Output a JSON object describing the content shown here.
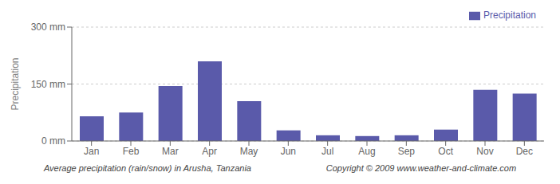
{
  "chart_data": {
    "type": "bar",
    "title": "Average precipitation (rain/snow) in Arusha, Tanzania",
    "annotations": [
      "Copyright © 2009 www.weather-and-climate.com"
    ],
    "categories": [
      "Jan",
      "Feb",
      "Mar",
      "Apr",
      "May",
      "Jun",
      "Jul",
      "Aug",
      "Sep",
      "Oct",
      "Nov",
      "Dec"
    ],
    "series": [
      {
        "name": "Precipitation",
        "color": "#5a5aaa",
        "values": [
          65,
          75,
          145,
          210,
          105,
          28,
          15,
          13,
          15,
          30,
          135,
          125
        ]
      }
    ],
    "y_label": "Precipitation",
    "ylim": [
      0,
      300
    ],
    "yticks": [
      {
        "value": 0,
        "label": "0 mm"
      },
      {
        "value": 150,
        "label": "150 mm"
      },
      {
        "value": 300,
        "label": "300 mm"
      }
    ],
    "grid": true,
    "legend": "upper right"
  }
}
